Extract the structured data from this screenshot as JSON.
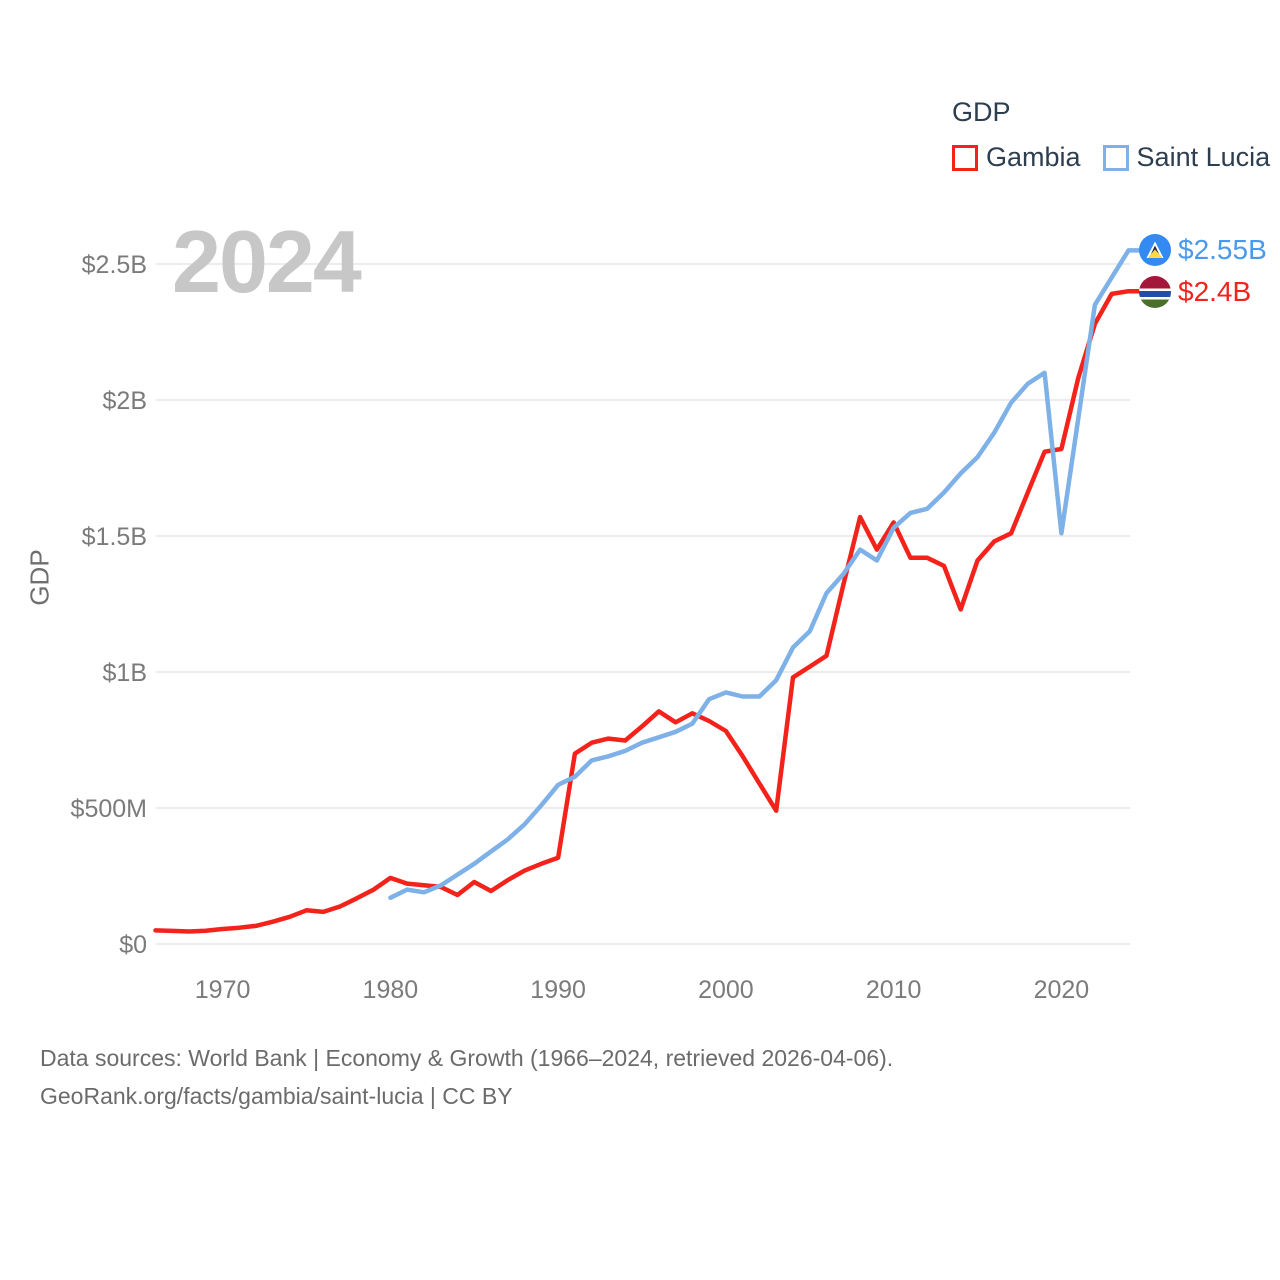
{
  "legend": {
    "title": "GDP",
    "items": [
      {
        "label": "Gambia",
        "color": "#f3231b"
      },
      {
        "label": "Saint Lucia",
        "color": "#7db1e8"
      }
    ]
  },
  "watermark_year": "2024",
  "end_labels": {
    "saint_lucia": {
      "value": "$2.55B",
      "flag": "saint-lucia-flag",
      "color": "#4a99eb"
    },
    "gambia": {
      "value": "$2.4B",
      "flag": "gambia-flag",
      "color": "#f3231b"
    }
  },
  "footer": {
    "line1": "Data sources: World Bank | Economy & Growth (1966–2024, retrieved 2026-04-06).",
    "line2": "GeoRank.org/facts/gambia/saint-lucia | CC BY"
  },
  "chart_data": {
    "type": "line",
    "title": "GDP",
    "ylabel": "GDP",
    "x_range": [
      1966,
      2024
    ],
    "ylim_billions": [
      0,
      2.5
    ],
    "grid": "horizontal",
    "legend_position": "top-right",
    "x_ticks": [
      1970,
      1980,
      1990,
      2000,
      2010,
      2020
    ],
    "y_ticks": [
      {
        "value": 0.0,
        "label": "$0"
      },
      {
        "value": 0.5,
        "label": "$500M"
      },
      {
        "value": 1.0,
        "label": "$1B"
      },
      {
        "value": 1.5,
        "label": "$1.5B"
      },
      {
        "value": 2.0,
        "label": "$2B"
      },
      {
        "value": 2.5,
        "label": "$2.5B"
      }
    ],
    "series": [
      {
        "name": "Gambia",
        "color": "#f3231b",
        "end_label": "$2.4B",
        "start_year": 1966,
        "unit": "billions USD",
        "values": [
          0.05,
          0.048,
          0.046,
          0.049,
          0.055,
          0.06,
          0.067,
          0.082,
          0.1,
          0.124,
          0.118,
          0.138,
          0.168,
          0.2,
          0.243,
          0.222,
          0.216,
          0.21,
          0.18,
          0.228,
          0.195,
          0.235,
          0.27,
          0.295,
          0.317,
          0.7,
          0.74,
          0.755,
          0.748,
          0.8,
          0.855,
          0.815,
          0.848,
          0.82,
          0.783,
          0.69,
          0.59,
          0.49,
          0.98,
          1.02,
          1.06,
          1.32,
          1.57,
          1.45,
          1.55,
          1.42,
          1.42,
          1.39,
          1.23,
          1.41,
          1.48,
          1.51,
          1.66,
          1.81,
          1.82,
          2.08,
          2.28,
          2.39,
          2.4
        ]
      },
      {
        "name": "Saint Lucia",
        "color": "#7db1e8",
        "end_label": "$2.55B",
        "start_year": 1980,
        "unit": "billions USD",
        "values": [
          0.17,
          0.2,
          0.19,
          0.215,
          0.255,
          0.295,
          0.34,
          0.385,
          0.44,
          0.51,
          0.585,
          0.615,
          0.675,
          0.69,
          0.71,
          0.74,
          0.76,
          0.78,
          0.81,
          0.9,
          0.925,
          0.91,
          0.91,
          0.97,
          1.09,
          1.15,
          1.29,
          1.36,
          1.45,
          1.41,
          1.53,
          1.585,
          1.6,
          1.66,
          1.73,
          1.79,
          1.88,
          1.99,
          2.06,
          2.1,
          1.51,
          1.93,
          2.35,
          2.45,
          2.55
        ]
      }
    ]
  }
}
